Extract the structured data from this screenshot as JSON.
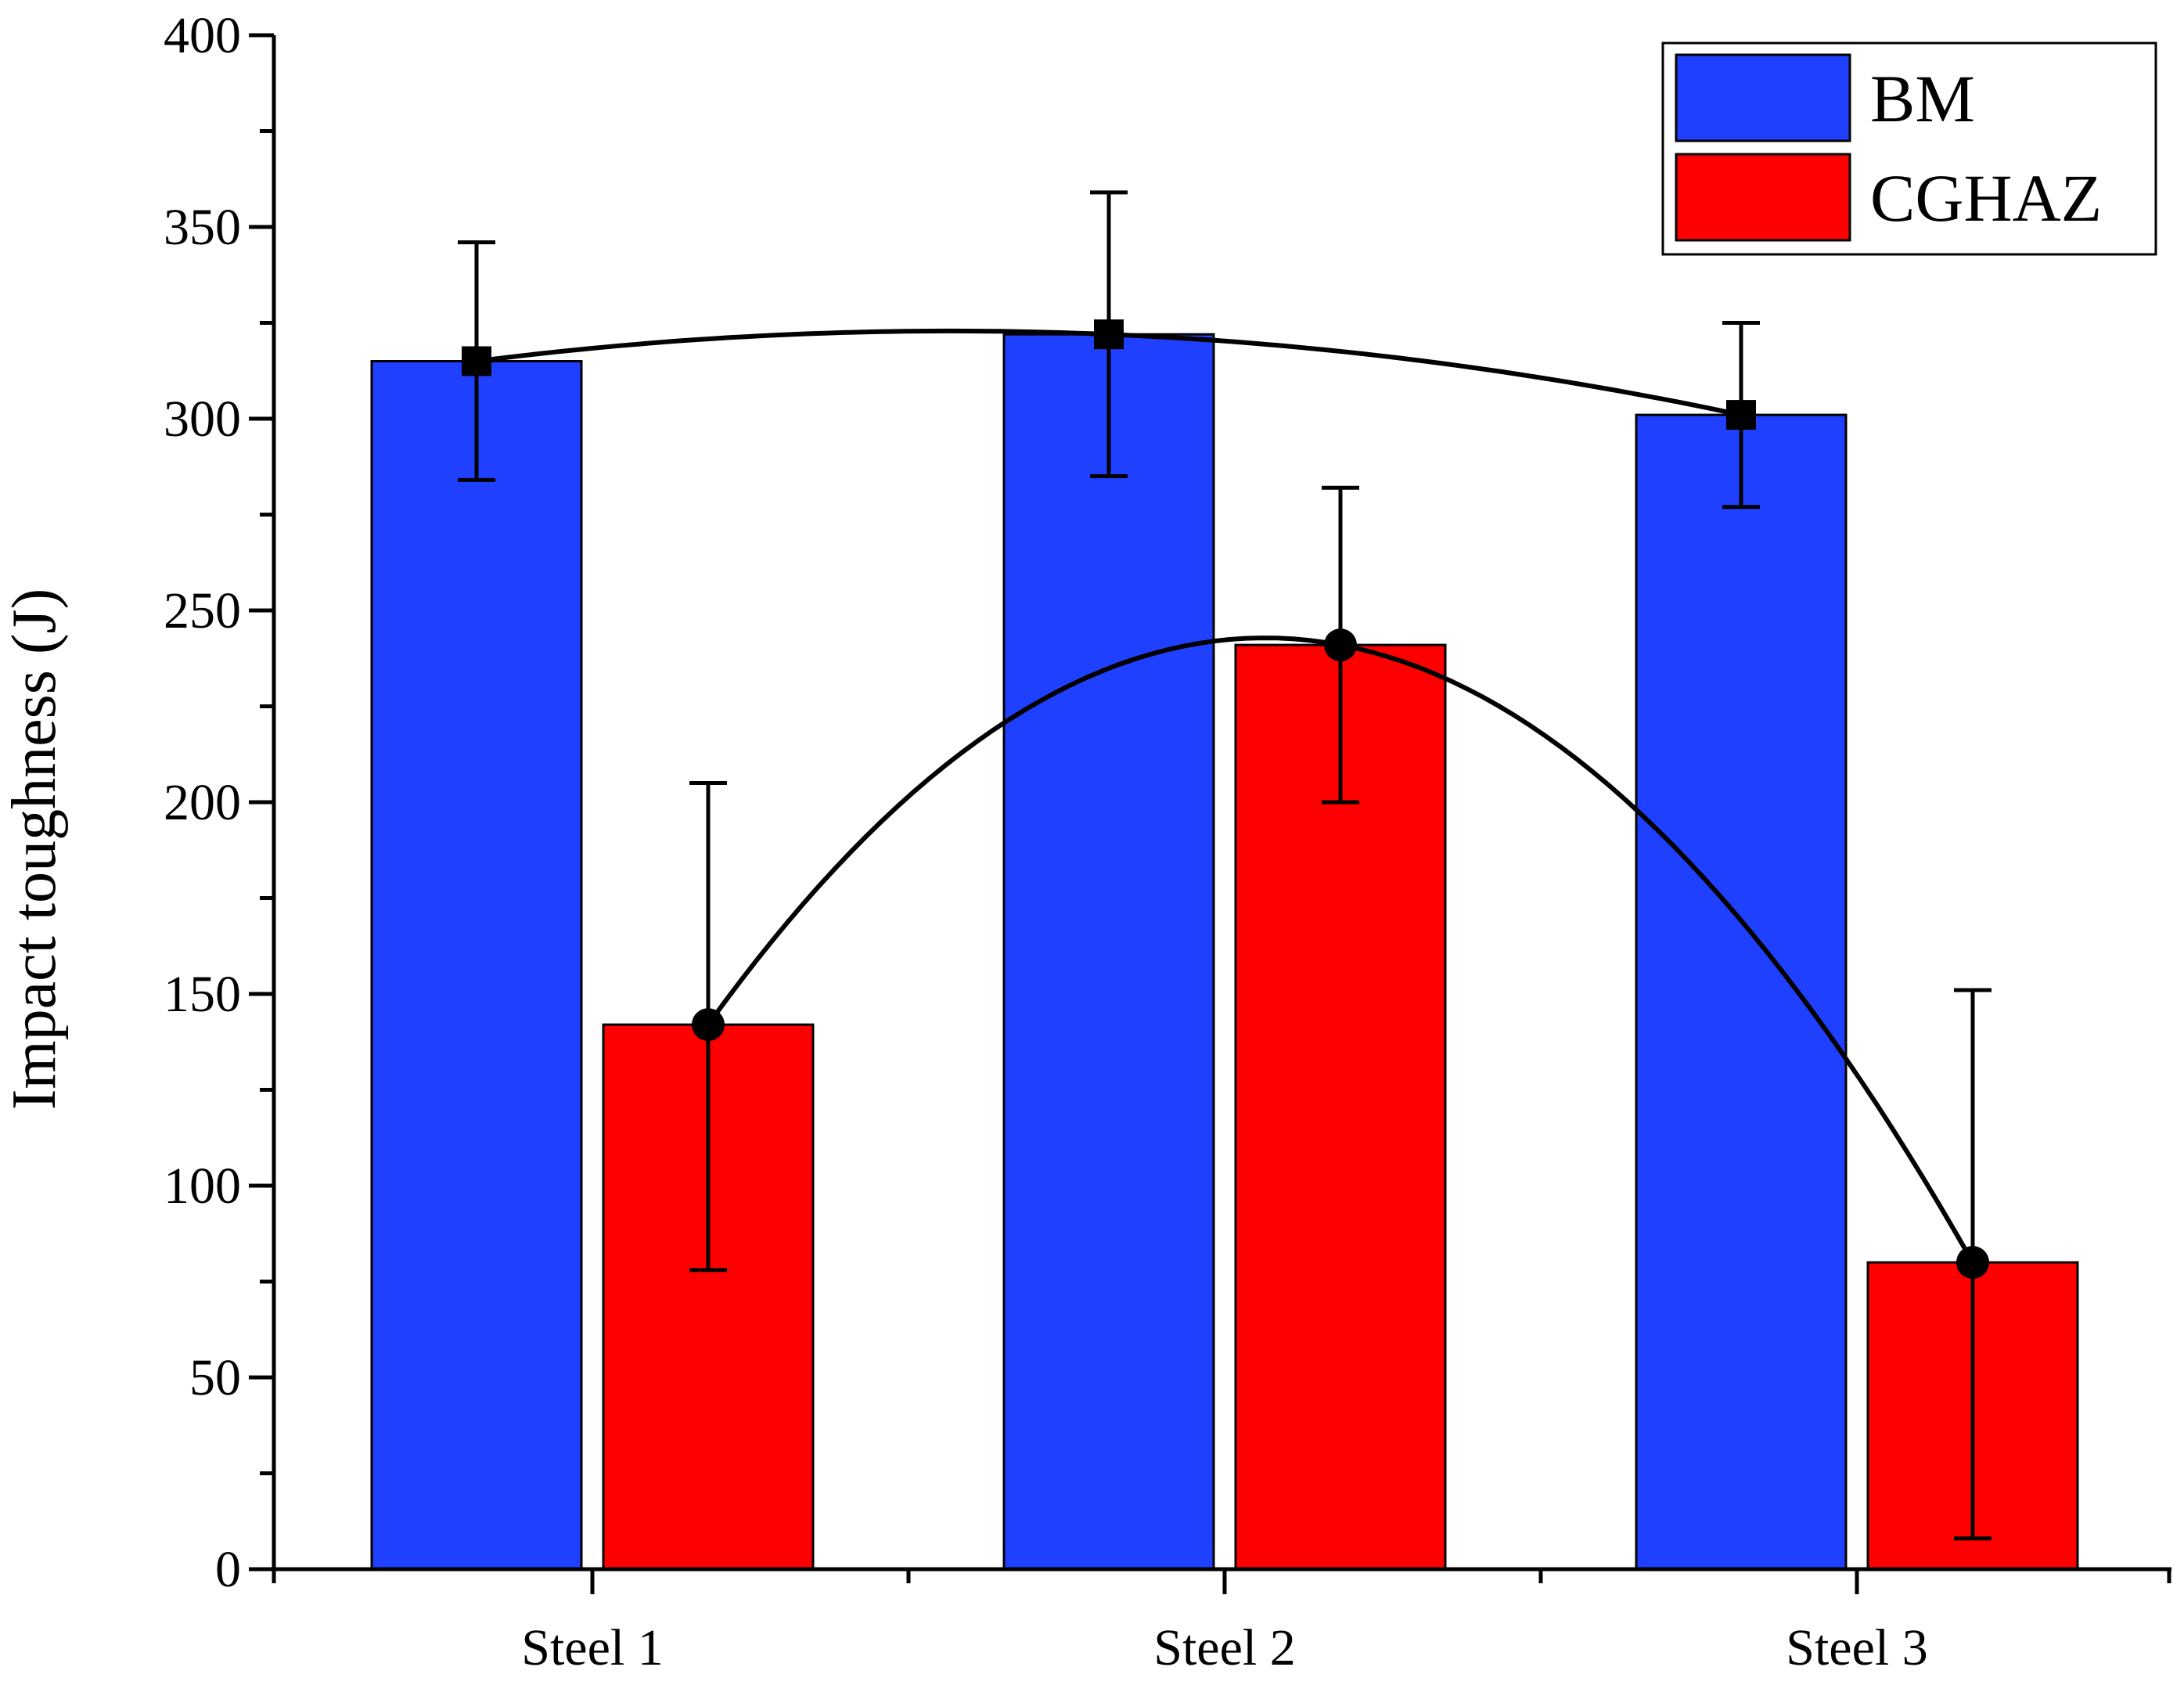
{
  "chart_data": {
    "type": "bar",
    "title": "",
    "xlabel": "",
    "ylabel": "Impact toughness (J)",
    "ylim": [
      0,
      400
    ],
    "yticks": [
      0,
      50,
      100,
      150,
      200,
      250,
      300,
      350,
      400
    ],
    "categories": [
      "Steel 1",
      "Steel 2",
      "Steel 3"
    ],
    "series": [
      {
        "name": "BM",
        "color": "#2040ff",
        "marker": "square",
        "values": [
          315,
          322,
          301
        ],
        "err_low": [
          284,
          285,
          277
        ],
        "err_high": [
          346,
          359,
          325
        ]
      },
      {
        "name": "CGHAZ",
        "color": "#ff0000",
        "marker": "circle",
        "values": [
          142,
          241,
          80
        ],
        "err_low": [
          78,
          200,
          8
        ],
        "err_high": [
          205,
          282,
          151
        ]
      }
    ],
    "trend_lines": true,
    "legend": {
      "position": "top-right",
      "entries": [
        "BM",
        "CGHAZ"
      ]
    },
    "grid": false
  }
}
